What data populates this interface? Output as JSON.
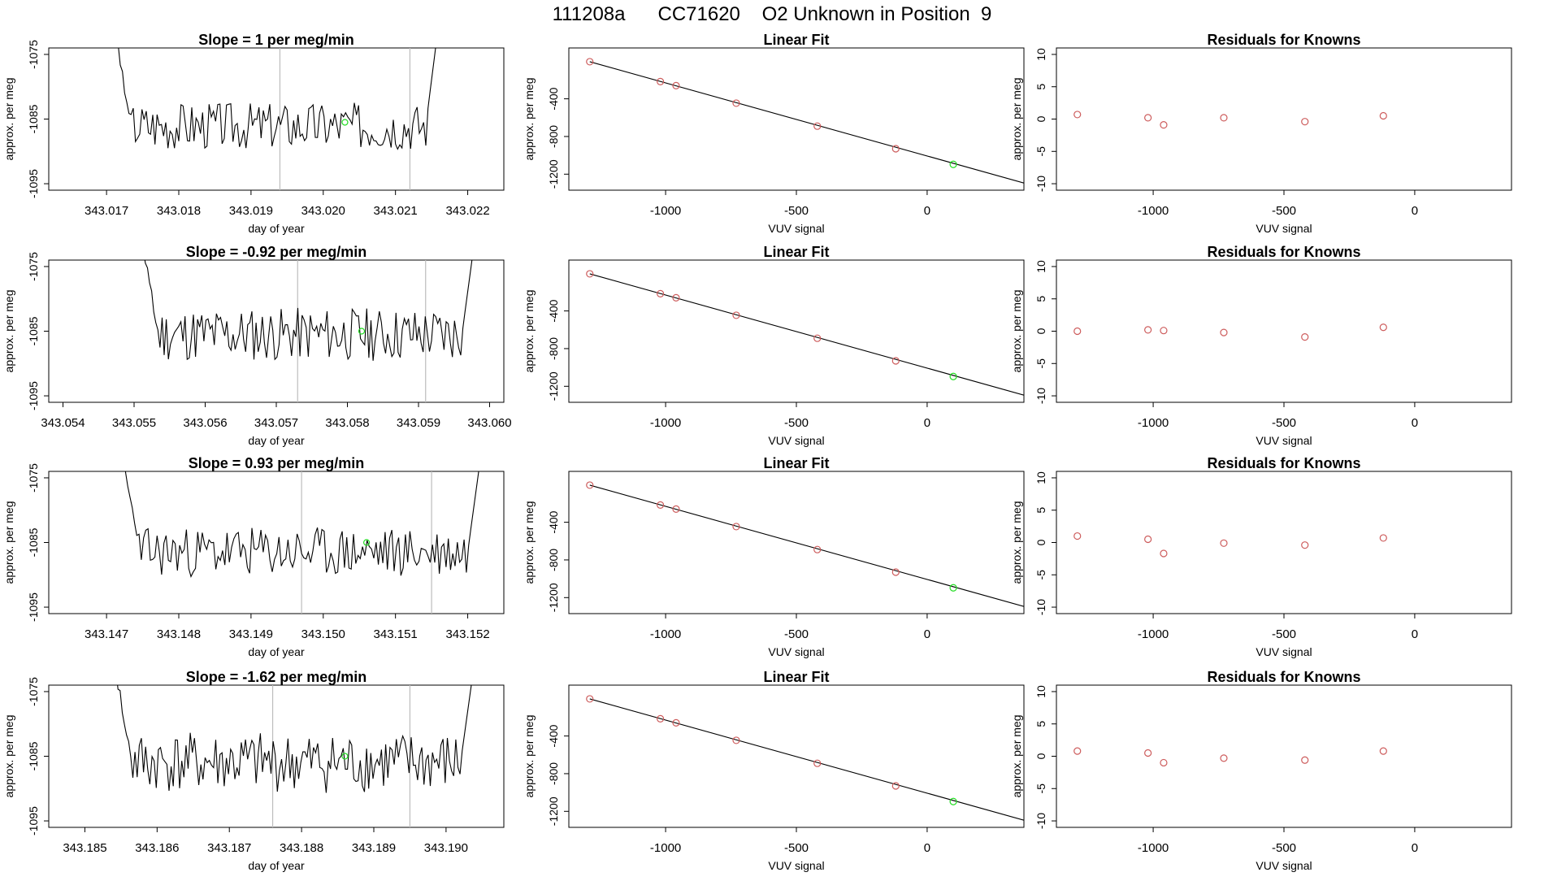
{
  "page": {
    "title": "111208a      CC71620    O2 Unknown in Position  9"
  },
  "colors": {
    "line": "#000000",
    "vline": "#bdbdbd",
    "known_point": "#cd5c5c",
    "unknown_point": "#22dd22",
    "frame": "#000000"
  },
  "chart_data": [
    {
      "type": "line",
      "title": "Slope =  1  per meg/min",
      "xlabel": "day of year",
      "ylabel": "approx. per meg",
      "xlim": [
        343.0162,
        343.0225
      ],
      "ylim": [
        -1096,
        -1074
      ],
      "xticks": [
        "343.017",
        "343.018",
        "343.019",
        "343.020",
        "343.021",
        "343.022"
      ],
      "yticks": [
        "-1075",
        "-1085",
        "-1095"
      ],
      "trace": {
        "x_start": 343.0171,
        "x_end": 343.0216,
        "y_start": -1070,
        "y_end": -1070,
        "level": -1086,
        "amplitude": 2.3,
        "seed": 3,
        "n": 150
      },
      "vlines": [
        343.0194,
        343.0212
      ],
      "point": {
        "x": 343.0203,
        "y": -1085.5
      }
    },
    {
      "type": "scatter",
      "title": "Linear Fit",
      "xlabel": "VUV signal",
      "ylabel": "approx. per meg",
      "xlim": [
        -1370,
        370
      ],
      "ylim": [
        -1370,
        140
      ],
      "xticks": [
        "-1000",
        "-500",
        "0"
      ],
      "yticks": [
        "-400",
        "-800",
        "-1200"
      ],
      "fit_line": {
        "x": [
          -1290,
          370
        ],
        "y": [
          -6,
          -1294
        ]
      },
      "known": [
        {
          "x": -1290,
          "y": -6
        },
        {
          "x": -1020,
          "y": -217
        },
        {
          "x": -960,
          "y": -260
        },
        {
          "x": -730,
          "y": -446
        },
        {
          "x": -420,
          "y": -690
        },
        {
          "x": -120,
          "y": -930
        }
      ],
      "unknown": [
        {
          "x": 100,
          "y": -1096
        }
      ]
    },
    {
      "type": "scatter",
      "title": "Residuals for Knowns",
      "xlabel": "VUV signal",
      "ylabel": "approx. per meg",
      "xlim": [
        -1370,
        370
      ],
      "ylim": [
        -11,
        11
      ],
      "xticks": [
        "-1000",
        "-500",
        "0"
      ],
      "yticks": [
        "10",
        "5",
        "0",
        "-5",
        "-10"
      ],
      "known": [
        {
          "x": -1290,
          "y": 0.7
        },
        {
          "x": -1020,
          "y": 0.2
        },
        {
          "x": -960,
          "y": -0.9
        },
        {
          "x": -730,
          "y": 0.2
        },
        {
          "x": -420,
          "y": -0.4
        },
        {
          "x": -120,
          "y": 0.5
        }
      ]
    },
    {
      "type": "line",
      "title": "Slope =  -0.92  per meg/min",
      "xlabel": "day of year",
      "ylabel": "approx. per meg",
      "xlim": [
        343.0538,
        343.0602
      ],
      "ylim": [
        -1096,
        -1074
      ],
      "xticks": [
        "343.054",
        "343.055",
        "343.056",
        "343.057",
        "343.058",
        "343.059",
        "343.060"
      ],
      "yticks": [
        "-1075",
        "-1085",
        "-1095"
      ],
      "trace": {
        "x_start": 343.0551,
        "x_end": 343.0598,
        "y_start": -1070,
        "y_end": -1070,
        "level": -1085.5,
        "amplitude": 2.6,
        "seed": 11,
        "n": 160
      },
      "vlines": [
        343.0573,
        343.0591
      ],
      "point": {
        "x": 343.0582,
        "y": -1085
      }
    },
    {
      "type": "scatter",
      "title": "Linear Fit",
      "xlabel": "VUV signal",
      "ylabel": "approx. per meg",
      "xlim": [
        -1370,
        370
      ],
      "ylim": [
        -1370,
        140
      ],
      "xticks": [
        "-1000",
        "-500",
        "0"
      ],
      "yticks": [
        "-400",
        "-800",
        "-1200"
      ],
      "fit_line": {
        "x": [
          -1290,
          370
        ],
        "y": [
          -6,
          -1294
        ]
      },
      "known": [
        {
          "x": -1290,
          "y": -6
        },
        {
          "x": -1020,
          "y": -217
        },
        {
          "x": -960,
          "y": -260
        },
        {
          "x": -730,
          "y": -446
        },
        {
          "x": -420,
          "y": -690
        },
        {
          "x": -120,
          "y": -930
        }
      ],
      "unknown": [
        {
          "x": 100,
          "y": -1096
        }
      ]
    },
    {
      "type": "scatter",
      "title": "Residuals for Knowns",
      "xlabel": "VUV signal",
      "ylabel": "approx. per meg",
      "xlim": [
        -1370,
        370
      ],
      "ylim": [
        -11,
        11
      ],
      "xticks": [
        "-1000",
        "-500",
        "0"
      ],
      "yticks": [
        "10",
        "5",
        "0",
        "-5",
        "-10"
      ],
      "known": [
        {
          "x": -1290,
          "y": 0.0
        },
        {
          "x": -1020,
          "y": 0.2
        },
        {
          "x": -960,
          "y": 0.1
        },
        {
          "x": -730,
          "y": -0.2
        },
        {
          "x": -420,
          "y": -0.9
        },
        {
          "x": -120,
          "y": 0.6
        }
      ]
    },
    {
      "type": "line",
      "title": "Slope =  0.93  per meg/min",
      "xlabel": "day of year",
      "ylabel": "approx. per meg",
      "xlim": [
        343.1462,
        343.1525
      ],
      "ylim": [
        -1096,
        -1074
      ],
      "xticks": [
        "343.147",
        "343.148",
        "343.149",
        "343.150",
        "343.151",
        "343.152"
      ],
      "yticks": [
        "-1075",
        "-1085",
        "-1095"
      ],
      "trace": {
        "x_start": 343.1472,
        "x_end": 343.1522,
        "y_start": -1070,
        "y_end": -1070,
        "level": -1086.5,
        "amplitude": 2.4,
        "seed": 23,
        "n": 160
      },
      "vlines": [
        343.1497,
        343.1515
      ],
      "point": {
        "x": 343.1506,
        "y": -1085
      }
    },
    {
      "type": "scatter",
      "title": "Linear Fit",
      "xlabel": "VUV signal",
      "ylabel": "approx. per meg",
      "xlim": [
        -1370,
        370
      ],
      "ylim": [
        -1370,
        140
      ],
      "xticks": [
        "-1000",
        "-500",
        "0"
      ],
      "yticks": [
        "-400",
        "-800",
        "-1200"
      ],
      "fit_line": {
        "x": [
          -1290,
          370
        ],
        "y": [
          -6,
          -1294
        ]
      },
      "known": [
        {
          "x": -1290,
          "y": -6
        },
        {
          "x": -1020,
          "y": -217
        },
        {
          "x": -960,
          "y": -260
        },
        {
          "x": -730,
          "y": -446
        },
        {
          "x": -420,
          "y": -690
        },
        {
          "x": -120,
          "y": -930
        }
      ],
      "unknown": [
        {
          "x": 100,
          "y": -1096
        }
      ]
    },
    {
      "type": "scatter",
      "title": "Residuals for Knowns",
      "xlabel": "VUV signal",
      "ylabel": "approx. per meg",
      "xlim": [
        -1370,
        370
      ],
      "ylim": [
        -11,
        11
      ],
      "xticks": [
        "-1000",
        "-500",
        "0"
      ],
      "yticks": [
        "10",
        "5",
        "0",
        "-5",
        "-10"
      ],
      "known": [
        {
          "x": -1290,
          "y": 1.0
        },
        {
          "x": -1020,
          "y": 0.5
        },
        {
          "x": -960,
          "y": -1.7
        },
        {
          "x": -730,
          "y": -0.1
        },
        {
          "x": -420,
          "y": -0.4
        },
        {
          "x": -120,
          "y": 0.7
        }
      ]
    },
    {
      "type": "line",
      "title": "Slope =  -1.62  per meg/min",
      "xlabel": "day of year",
      "ylabel": "approx. per meg",
      "xlim": [
        343.1845,
        343.1908
      ],
      "ylim": [
        -1096,
        -1074
      ],
      "xticks": [
        "343.185",
        "343.186",
        "343.187",
        "343.188",
        "343.189",
        "343.190"
      ],
      "yticks": [
        "-1075",
        "-1085",
        "-1095"
      ],
      "trace": {
        "x_start": 343.1854,
        "x_end": 343.1904,
        "y_start": -1070,
        "y_end": -1070,
        "level": -1086,
        "amplitude": 2.9,
        "seed": 41,
        "n": 170
      },
      "vlines": [
        343.1876,
        343.1895
      ],
      "point": {
        "x": 343.1886,
        "y": -1085
      }
    },
    {
      "type": "scatter",
      "title": "Linear Fit",
      "xlabel": "VUV signal",
      "ylabel": "approx. per meg",
      "xlim": [
        -1370,
        370
      ],
      "ylim": [
        -1370,
        140
      ],
      "xticks": [
        "-1000",
        "-500",
        "0"
      ],
      "yticks": [
        "-400",
        "-800",
        "-1200"
      ],
      "fit_line": {
        "x": [
          -1290,
          370
        ],
        "y": [
          -6,
          -1294
        ]
      },
      "known": [
        {
          "x": -1290,
          "y": -6
        },
        {
          "x": -1020,
          "y": -217
        },
        {
          "x": -960,
          "y": -260
        },
        {
          "x": -730,
          "y": -446
        },
        {
          "x": -420,
          "y": -690
        },
        {
          "x": -120,
          "y": -930
        }
      ],
      "unknown": [
        {
          "x": 100,
          "y": -1096
        }
      ]
    },
    {
      "type": "scatter",
      "title": "Residuals for Knowns",
      "xlabel": "VUV signal",
      "ylabel": "approx. per meg",
      "xlim": [
        -1370,
        370
      ],
      "ylim": [
        -11,
        11
      ],
      "xticks": [
        "-1000",
        "-500",
        "0"
      ],
      "yticks": [
        "10",
        "5",
        "0",
        "-5",
        "-10"
      ],
      "known": [
        {
          "x": -1290,
          "y": 0.8
        },
        {
          "x": -1020,
          "y": 0.5
        },
        {
          "x": -960,
          "y": -1.0
        },
        {
          "x": -730,
          "y": -0.3
        },
        {
          "x": -420,
          "y": -0.6
        },
        {
          "x": -120,
          "y": 0.8
        }
      ]
    }
  ]
}
